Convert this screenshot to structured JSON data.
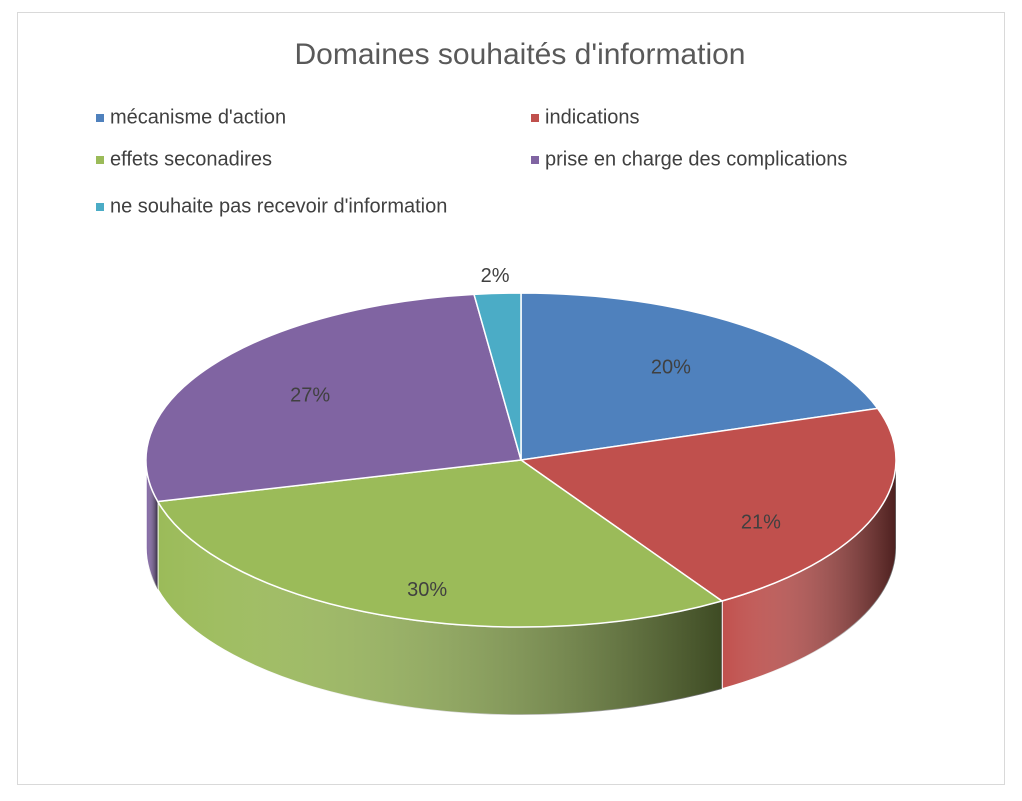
{
  "chart_data": {
    "type": "pie3d",
    "title": "Domaines souhaités d'information",
    "categories": [
      "mécanisme d'action",
      "indications",
      "effets seconadires",
      "prise en charge des complications",
      "ne souhaite pas recevoir d'information"
    ],
    "values": [
      20,
      21,
      30,
      27,
      2
    ],
    "value_labels": [
      "20%",
      "21%",
      "30%",
      "27%",
      "2%"
    ],
    "colors": [
      "#4f81bd",
      "#c0504d",
      "#9bbb59",
      "#8064a2",
      "#4bacc6"
    ],
    "legend": "top"
  }
}
